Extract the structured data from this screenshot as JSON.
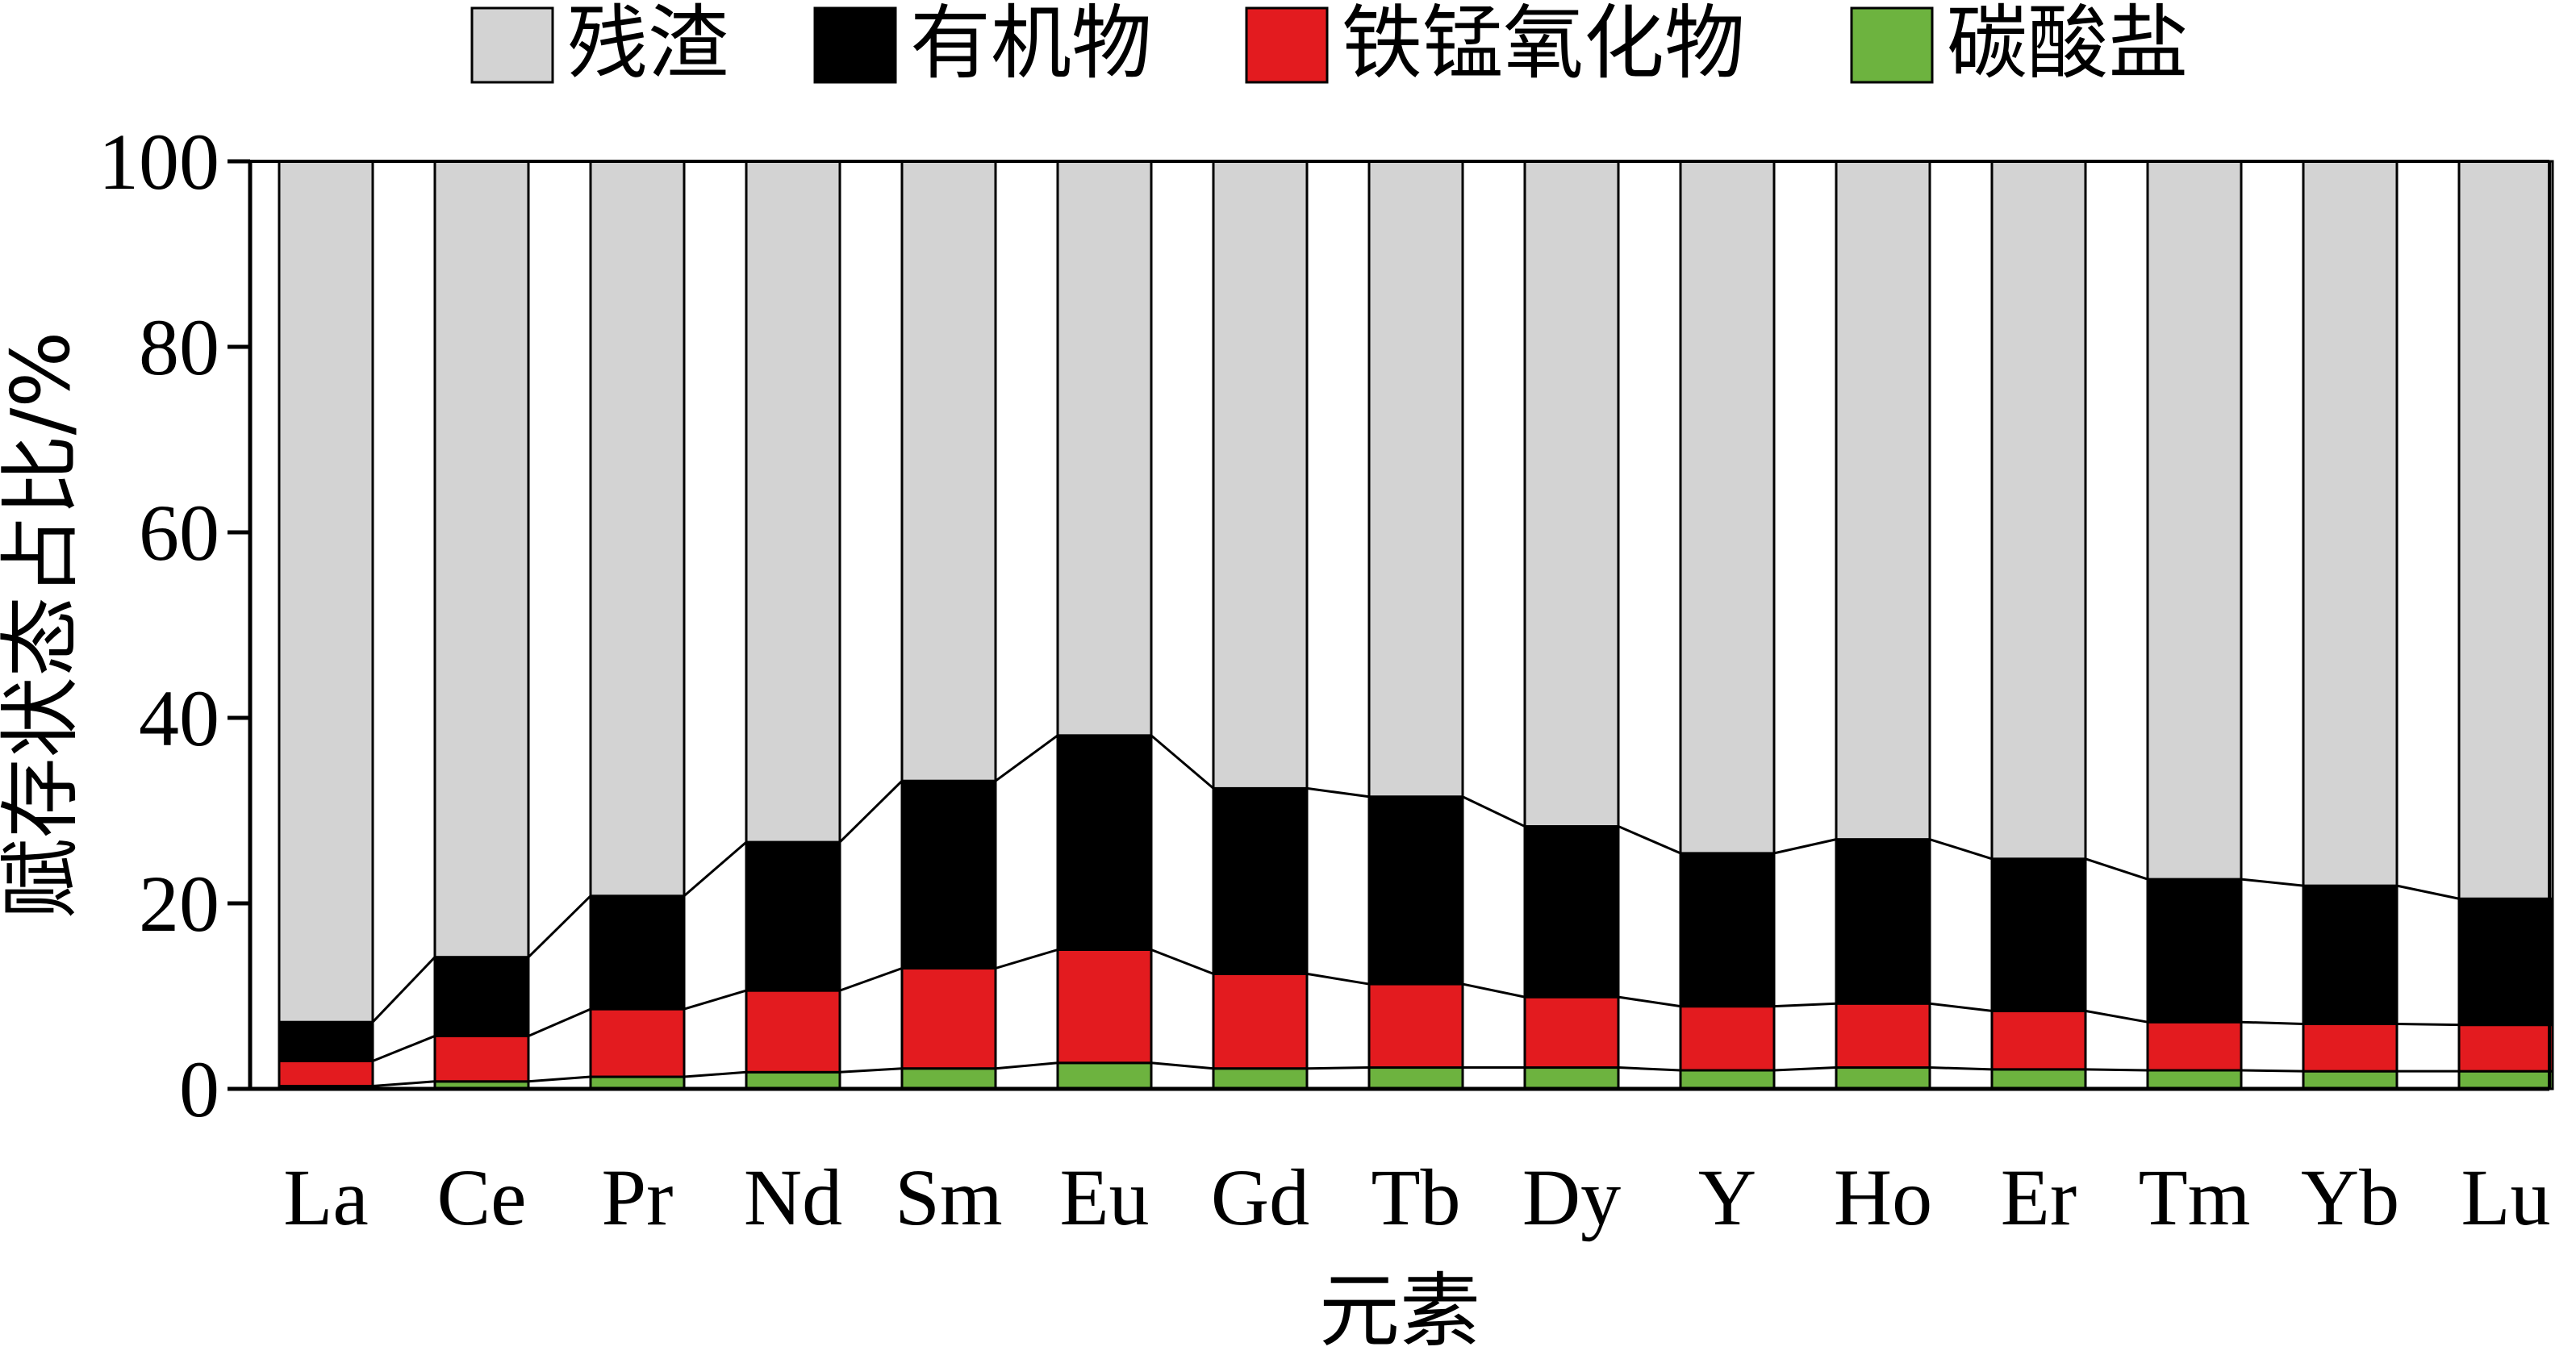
{
  "chart_data": {
    "type": "bar",
    "stacked": true,
    "xlabel": "元素",
    "ylabel": "赋存状态占比/%",
    "ylim": [
      0,
      100
    ],
    "yticks": [
      "0",
      "20",
      "40",
      "60",
      "80",
      "100"
    ],
    "categories": [
      "La",
      "Ce",
      "Pr",
      "Nd",
      "Sm",
      "Eu",
      "Gd",
      "Tb",
      "Dy",
      "Y",
      "Ho",
      "Er",
      "Tm",
      "Yb",
      "Lu"
    ],
    "legend_position": "top",
    "series": [
      {
        "name": "碳酸盐",
        "color": "#6db33f",
        "values": [
          0.3,
          0.8,
          1.3,
          1.8,
          2.2,
          2.8,
          2.2,
          2.3,
          2.3,
          2.0,
          2.3,
          2.1,
          2.0,
          1.9,
          1.9
        ]
      },
      {
        "name": "铁锰氧化物",
        "color": "#e31b1f",
        "values": [
          2.7,
          4.9,
          7.3,
          8.8,
          10.8,
          12.2,
          10.2,
          9.0,
          7.6,
          6.9,
          6.9,
          6.3,
          5.2,
          5.1,
          5.0
        ]
      },
      {
        "name": "有机物",
        "color": "#000000",
        "values": [
          4.2,
          8.5,
          12.2,
          16.0,
          20.2,
          23.1,
          20.0,
          20.2,
          18.4,
          16.5,
          17.7,
          16.4,
          15.4,
          14.9,
          13.6
        ]
      },
      {
        "name": "残渣",
        "color": "#d3d3d3",
        "values": [
          92.8,
          85.8,
          79.2,
          73.4,
          66.8,
          61.9,
          67.6,
          68.5,
          71.7,
          74.6,
          73.1,
          75.2,
          77.4,
          78.1,
          79.5
        ]
      }
    ],
    "legend_order": [
      "残渣",
      "有机物",
      "铁锰氧化物",
      "碳酸盐"
    ]
  }
}
